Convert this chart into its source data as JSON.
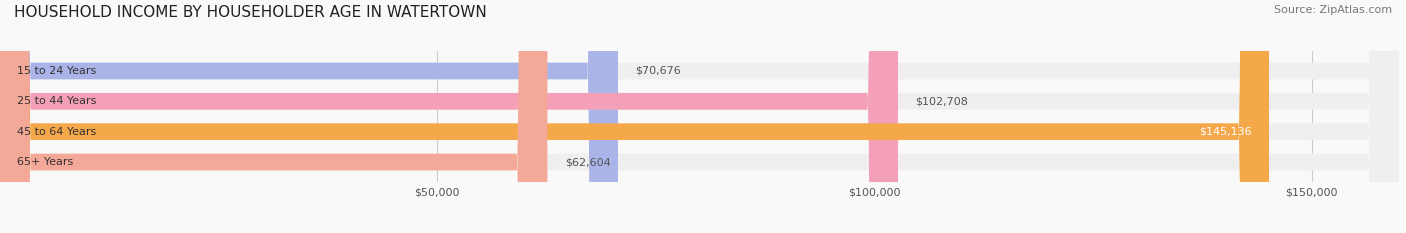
{
  "title": "HOUSEHOLD INCOME BY HOUSEHOLDER AGE IN WATERTOWN",
  "source": "Source: ZipAtlas.com",
  "categories": [
    "15 to 24 Years",
    "25 to 44 Years",
    "45 to 64 Years",
    "65+ Years"
  ],
  "values": [
    70676,
    102708,
    145136,
    62604
  ],
  "bar_colors": [
    "#aab4e8",
    "#f4a0b8",
    "#f5a84a",
    "#f4a898"
  ],
  "bar_bg_color": "#efefef",
  "value_labels": [
    "$70,676",
    "$102,708",
    "$145,136",
    "$62,604"
  ],
  "xlim": [
    0,
    160000
  ],
  "xticks": [
    50000,
    100000,
    150000
  ],
  "xtick_labels": [
    "$50,000",
    "$100,000",
    "$150,000"
  ],
  "title_fontsize": 11,
  "source_fontsize": 8,
  "label_fontsize": 8,
  "bar_height": 0.55,
  "background_color": "#f9f9f9",
  "grid_color": "#cccccc"
}
